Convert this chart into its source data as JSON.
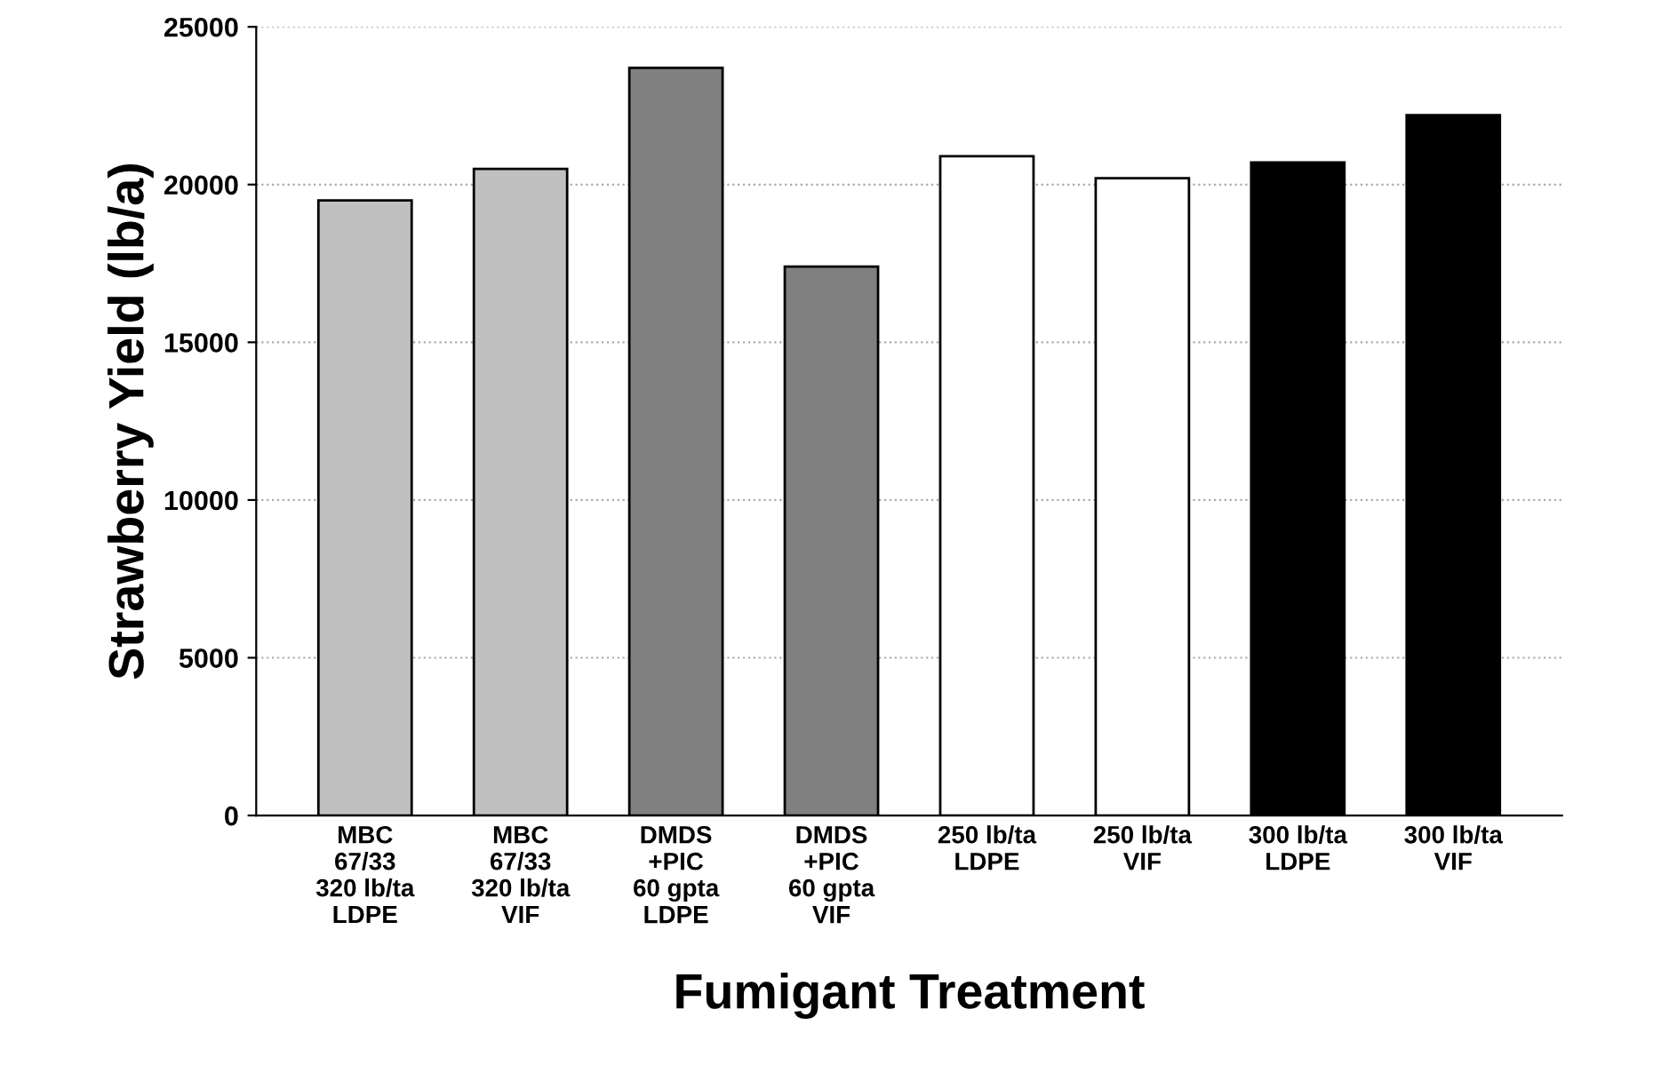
{
  "chart_data": {
    "type": "bar",
    "xlabel": "Fumigant Treatment",
    "ylabel": "Strawberry Yield (lb/a)",
    "categories": [
      "MBC\n67/33\n320 lb/ta\nLDPE",
      "MBC\n67/33\n320 lb/ta\nVIF",
      "DMDS\n+PIC\n60 gpta\nLDPE",
      "DMDS\n+PIC\n60 gpta\nVIF",
      "250 lb/ta\nLDPE",
      "250 lb/ta\nVIF",
      "300 lb/ta\nLDPE",
      "300 lb/ta\nVIF"
    ],
    "values": [
      19500,
      20500,
      23700,
      17400,
      20900,
      20200,
      20700,
      22200
    ],
    "colors": [
      "#c0c0c0",
      "#c0c0c0",
      "#808080",
      "#808080",
      "#ffffff",
      "#ffffff",
      "#000000",
      "#000000"
    ],
    "ylim": [
      0,
      25000
    ],
    "yticks": [
      0,
      5000,
      10000,
      15000,
      20000,
      25000
    ],
    "grid": "y",
    "legend": false
  }
}
